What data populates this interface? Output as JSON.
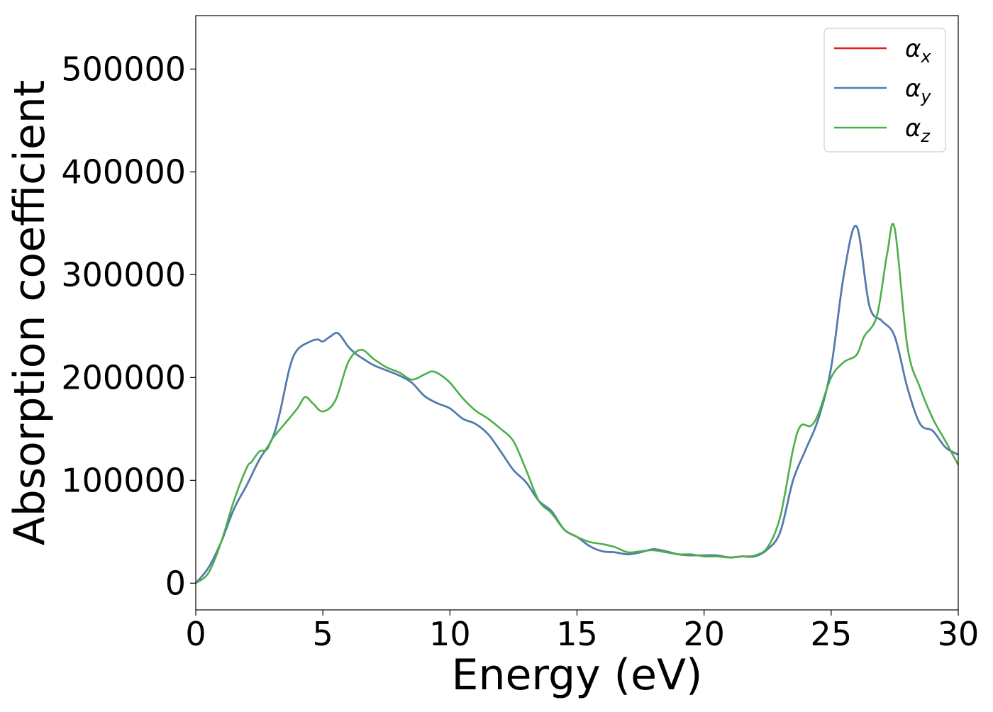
{
  "chart_data": {
    "type": "line",
    "title": "",
    "xlabel": "Energy (eV)",
    "ylabel": "Absorption coefficient",
    "xlim": [
      0,
      30
    ],
    "ylim": [
      -26000,
      552000
    ],
    "xticks": [
      0,
      5,
      10,
      15,
      20,
      25,
      30
    ],
    "yticks": [
      0,
      100000,
      200000,
      300000,
      400000,
      500000
    ],
    "xtick_labels": [
      "0",
      "5",
      "10",
      "15",
      "20",
      "25",
      "30"
    ],
    "ytick_labels": [
      "0",
      "100000",
      "200000",
      "300000",
      "400000",
      "500000"
    ],
    "grid": false,
    "legend_position": "top-right",
    "series": [
      {
        "name": "α",
        "subscript": "x",
        "color": "#e41a1c",
        "x": [
          0,
          0.5,
          1,
          1.5,
          2,
          2.5,
          3,
          3.3,
          3.7,
          4,
          4.5,
          4.8,
          5,
          5.3,
          5.6,
          6,
          6.3,
          6.6,
          7,
          7.5,
          8,
          8.5,
          9,
          9.5,
          10,
          10.5,
          11,
          11.5,
          12,
          12.5,
          13,
          13.5,
          14,
          14.5,
          15,
          15.5,
          16,
          16.5,
          17,
          17.5,
          18,
          18.5,
          19,
          19.5,
          20,
          20.5,
          21,
          21.5,
          22,
          22.5,
          23,
          23.5,
          24,
          24.5,
          25,
          25.5,
          26,
          26.5,
          27,
          27.5,
          28,
          28.5,
          29,
          29.5,
          30
        ],
        "y": [
          0,
          15000,
          40000,
          72000,
          95000,
          120000,
          140000,
          165000,
          210000,
          227000,
          235000,
          237000,
          235000,
          240000,
          243000,
          230000,
          223000,
          218000,
          212000,
          207000,
          202000,
          195000,
          182000,
          175000,
          170000,
          160000,
          155000,
          145000,
          128000,
          110000,
          98000,
          80000,
          70000,
          52000,
          45000,
          36000,
          31000,
          30000,
          28000,
          30000,
          33000,
          31000,
          28000,
          27000,
          27000,
          27000,
          25000,
          26000,
          26000,
          33000,
          50000,
          100000,
          130000,
          160000,
          210000,
          300000,
          347000,
          270000,
          255000,
          240000,
          190000,
          155000,
          148000,
          132000,
          125000
        ]
      },
      {
        "name": "α",
        "subscript": "y",
        "color": "#4a7fb5",
        "x": [
          0,
          0.5,
          1,
          1.5,
          2,
          2.5,
          3,
          3.3,
          3.7,
          4,
          4.5,
          4.8,
          5,
          5.3,
          5.6,
          6,
          6.3,
          6.6,
          7,
          7.5,
          8,
          8.5,
          9,
          9.5,
          10,
          10.5,
          11,
          11.5,
          12,
          12.5,
          13,
          13.5,
          14,
          14.5,
          15,
          15.5,
          16,
          16.5,
          17,
          17.5,
          18,
          18.5,
          19,
          19.5,
          20,
          20.5,
          21,
          21.5,
          22,
          22.5,
          23,
          23.5,
          24,
          24.5,
          25,
          25.5,
          26,
          26.5,
          27,
          27.5,
          28,
          28.5,
          29,
          29.5,
          30
        ],
        "y": [
          0,
          15000,
          40000,
          72000,
          95000,
          120000,
          140000,
          165000,
          210000,
          227000,
          235000,
          237000,
          235000,
          240000,
          243000,
          230000,
          223000,
          218000,
          212000,
          207000,
          202000,
          195000,
          182000,
          175000,
          170000,
          160000,
          155000,
          145000,
          128000,
          110000,
          98000,
          80000,
          70000,
          52000,
          45000,
          36000,
          31000,
          30000,
          28000,
          30000,
          33000,
          31000,
          28000,
          27000,
          27000,
          27000,
          25000,
          26000,
          26000,
          33000,
          50000,
          100000,
          130000,
          160000,
          210000,
          300000,
          347000,
          270000,
          255000,
          240000,
          190000,
          155000,
          148000,
          132000,
          125000
        ]
      },
      {
        "name": "α",
        "subscript": "z",
        "color": "#4daf4a",
        "x": [
          0,
          0.5,
          1,
          1.5,
          2,
          2.2,
          2.5,
          2.8,
          3,
          3.5,
          4,
          4.3,
          4.6,
          5,
          5.5,
          6,
          6.5,
          7,
          7.5,
          8,
          8.5,
          9,
          9.3,
          9.6,
          10,
          10.5,
          11,
          11.5,
          12,
          12.5,
          13,
          13.5,
          14,
          14.5,
          15,
          15.5,
          16,
          16.5,
          17,
          17.5,
          18,
          18.5,
          19,
          19.5,
          20,
          20.5,
          21,
          21.5,
          22,
          22.5,
          23,
          23.5,
          23.8,
          24.2,
          24.5,
          25,
          25.5,
          26,
          26.3,
          26.8,
          27.2,
          27.5,
          28,
          28.5,
          29,
          29.5,
          30
        ],
        "y": [
          0,
          10000,
          40000,
          80000,
          112000,
          118000,
          128000,
          130000,
          140000,
          155000,
          170000,
          181000,
          175000,
          167000,
          178000,
          215000,
          227000,
          218000,
          210000,
          205000,
          198000,
          203000,
          206000,
          203000,
          195000,
          180000,
          168000,
          160000,
          150000,
          138000,
          110000,
          80000,
          68000,
          52000,
          45000,
          40000,
          38000,
          35000,
          30000,
          31000,
          32000,
          30000,
          28000,
          28000,
          26000,
          26000,
          25000,
          26000,
          27000,
          35000,
          65000,
          130000,
          153000,
          153000,
          165000,
          200000,
          215000,
          222000,
          240000,
          260000,
          320000,
          345000,
          230000,
          190000,
          160000,
          138000,
          115000
        ]
      }
    ]
  }
}
